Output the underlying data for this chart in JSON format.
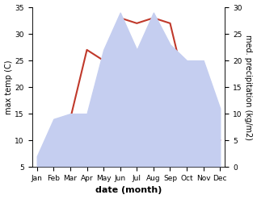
{
  "months": [
    "Jan",
    "Feb",
    "Mar",
    "Apr",
    "May",
    "Jun",
    "Jul",
    "Aug",
    "Sep",
    "Oct",
    "Nov",
    "Dec"
  ],
  "temperature": [
    4,
    9,
    14,
    27,
    25,
    33,
    32,
    33,
    32,
    19,
    12,
    10
  ],
  "precipitation": [
    2,
    9,
    10,
    10,
    22,
    29,
    22,
    29,
    23,
    20,
    20,
    11
  ],
  "temp_color": "#c0392b",
  "precip_fill_color": "#c5cef0",
  "temp_ylim": [
    5,
    35
  ],
  "precip_ylim": [
    0,
    30
  ],
  "temp_yticks": [
    5,
    10,
    15,
    20,
    25,
    30,
    35
  ],
  "precip_yticks": [
    0,
    5,
    10,
    15,
    20,
    25,
    30
  ],
  "xlabel": "date (month)",
  "ylabel_left": "max temp (C)",
  "ylabel_right": "med. precipitation (kg/m2)",
  "background_color": "#ffffff",
  "label_fontsize": 7.5,
  "tick_fontsize": 6.5,
  "line_width": 1.5
}
